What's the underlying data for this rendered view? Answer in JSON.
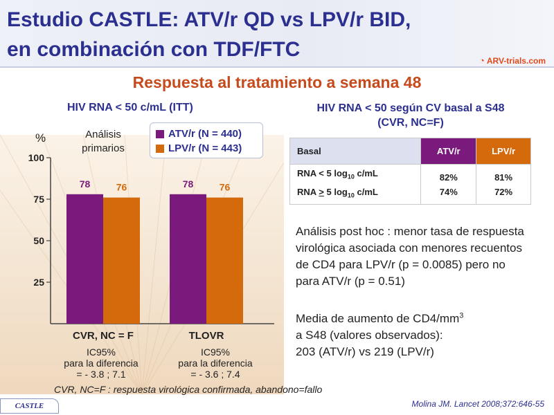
{
  "header": {
    "title_line1": "Estudio CASTLE: ATV/r QD vs LPV/r BID,",
    "title_line2": "en combinación con TDF/FTC",
    "brand": "ARV-trials.com"
  },
  "subtitle": "Respuesta al tratamiento a semana 48",
  "left_title": "HIV RNA < 50 c/mL (ITT)",
  "right_title_line1": "HIV RNA < 50 según CV basal a S48",
  "right_title_line2": "(CVR, NC=F)",
  "chart_data": {
    "type": "bar",
    "categories": [
      "CVR, NC = F",
      "TLOVR"
    ],
    "series": [
      {
        "name": "ATV/r (N = 440)",
        "values": [
          78,
          78
        ],
        "color": "#7a1a7c"
      },
      {
        "name": "LPV/r (N = 443)",
        "values": [
          76,
          76
        ],
        "color": "#d46a0c"
      }
    ],
    "ylabel": "%",
    "ylim": [
      0,
      100
    ],
    "yticks": [
      25,
      50,
      75,
      100
    ],
    "annotation": "Análisis primarios"
  },
  "chart_labels": {
    "ylabel": "%",
    "primary_line1": "Análisis",
    "primary_line2": "primarios"
  },
  "ci": [
    {
      "line1": "IC95%",
      "line2": "para la diferencia",
      "line3": "= - 3.8 ; 7.1"
    },
    {
      "line1": "IC95%",
      "line2": "para la diferencia",
      "line3": "= - 3.6 ; 7.4"
    }
  ],
  "footnote": "CVR, NC=F : respuesta virológica confirmada, abandono=fallo",
  "table": {
    "headers": [
      "Basal",
      "ATV/r",
      "LPV/r"
    ],
    "row1_label_a": "RNA < 5 log",
    "row1_label_b": "RNA ",
    "row1_ge": ">",
    "row1_label_c": " 5 log",
    "sub": "10",
    "unit": " c/mL",
    "atv_values": [
      "82%",
      "74%"
    ],
    "lpv_values": [
      "81%",
      "72%"
    ]
  },
  "posthoc": "Análisis post hoc : menor tasa de respuesta virológica asociada con menores recuentos de CD4 para LPV/r (p = 0.0085) pero no para ATV/r (p = 0.51)",
  "cd4": {
    "line1": "Media de aumento de CD4/mm",
    "sup": "3",
    "line2": "a S48 (valores observados):",
    "line3": "203 (ATV/r) vs 219 (LPV/r)"
  },
  "castle_tag": "CASTLE",
  "citation": "Molina JM. Lancet 2008;372:646-55",
  "colors": {
    "atv": "#7a1a7c",
    "lpv": "#d46a0c",
    "title": "#2b2f8f",
    "accent": "#c64a1b"
  }
}
